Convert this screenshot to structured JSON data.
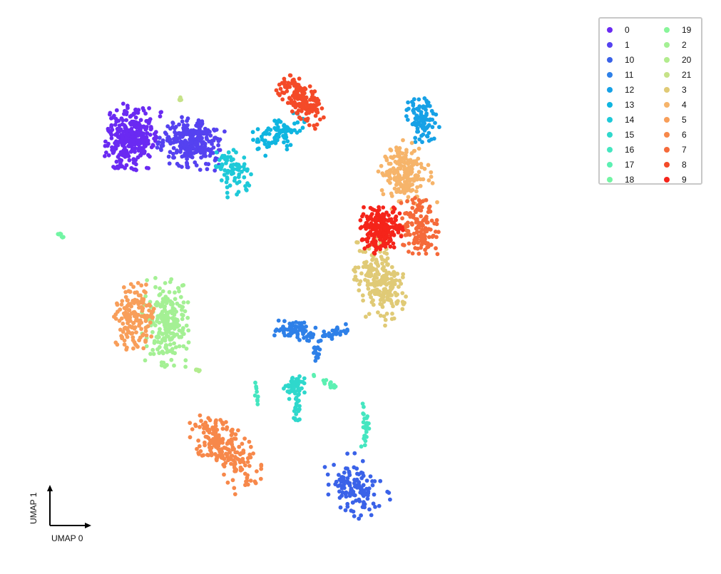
{
  "chart_data": {
    "type": "scatter",
    "title": "",
    "xlabel": "UMAP 0",
    "ylabel": "UMAP 1",
    "grid": false,
    "legend_position": "top-right",
    "xlim": [
      0,
      100
    ],
    "ylim": [
      0,
      100
    ],
    "series": [
      {
        "name": "0",
        "color": "#6a2af2",
        "clusters": [
          {
            "cx": 20.5,
            "cy": 78.5,
            "rx": 4.2,
            "ry": 5.5,
            "n": 320,
            "angle": -10
          }
        ]
      },
      {
        "name": "1",
        "color": "#5542f0",
        "clusters": [
          {
            "cx": 30.8,
            "cy": 77.5,
            "rx": 5.2,
            "ry": 4.2,
            "n": 280,
            "angle": -10
          }
        ]
      },
      {
        "name": "10",
        "color": "#3a62e8",
        "clusters": [
          {
            "cx": 59.5,
            "cy": 14.0,
            "rx": 4.2,
            "ry": 5.5,
            "n": 130,
            "angle": 35
          }
        ]
      },
      {
        "name": "11",
        "color": "#2e80e8",
        "clusters": [
          {
            "cx": 49.0,
            "cy": 43.0,
            "rx": 4.8,
            "ry": 1.6,
            "n": 70,
            "angle": -10
          },
          {
            "cx": 56.0,
            "cy": 42.5,
            "rx": 3.5,
            "ry": 1.0,
            "n": 35,
            "angle": 15
          },
          {
            "cx": 53.0,
            "cy": 38.8,
            "rx": 0.8,
            "ry": 2.0,
            "n": 15,
            "angle": 0
          }
        ]
      },
      {
        "name": "12",
        "color": "#16a1e6",
        "clusters": [
          {
            "cx": 71.5,
            "cy": 82.0,
            "rx": 2.5,
            "ry": 4.2,
            "n": 90,
            "angle": 10
          }
        ]
      },
      {
        "name": "13",
        "color": "#0fb5e0",
        "clusters": [
          {
            "cx": 46.5,
            "cy": 79.0,
            "rx": 4.5,
            "ry": 2.8,
            "n": 90,
            "angle": 20
          }
        ]
      },
      {
        "name": "14",
        "color": "#1ec9d8",
        "clusters": [
          {
            "cx": 38.5,
            "cy": 72.5,
            "rx": 2.5,
            "ry": 4.0,
            "n": 80,
            "angle": 20
          }
        ]
      },
      {
        "name": "15",
        "color": "#2fd8cc",
        "clusters": [
          {
            "cx": 49.2,
            "cy": 32.5,
            "rx": 1.8,
            "ry": 2.0,
            "n": 55,
            "angle": 0
          },
          {
            "cx": 49.5,
            "cy": 28.5,
            "rx": 0.5,
            "ry": 2.8,
            "n": 20,
            "angle": 0
          }
        ]
      },
      {
        "name": "16",
        "color": "#45e6c0",
        "clusters": [
          {
            "cx": 61.5,
            "cy": 25.5,
            "rx": 0.7,
            "ry": 3.8,
            "n": 25,
            "angle": 0
          },
          {
            "cx": 42.5,
            "cy": 31.0,
            "rx": 0.4,
            "ry": 2.8,
            "n": 10,
            "angle": 0
          }
        ]
      },
      {
        "name": "17",
        "color": "#5cf0b2",
        "clusters": [
          {
            "cx": 55.5,
            "cy": 33.0,
            "rx": 3.2,
            "ry": 0.5,
            "n": 16,
            "angle": -30
          }
        ]
      },
      {
        "name": "18",
        "color": "#72f5a4",
        "clusters": [
          {
            "cx": 8.0,
            "cy": 60.5,
            "rx": 0.9,
            "ry": 0.3,
            "n": 8,
            "angle": -40
          }
        ]
      },
      {
        "name": "19",
        "color": "#88f59a",
        "clusters": []
      },
      {
        "name": "2",
        "color": "#a4f094",
        "clusters": [
          {
            "cx": 26.5,
            "cy": 44.5,
            "rx": 3.8,
            "ry": 7.5,
            "n": 230,
            "angle": 0
          }
        ]
      },
      {
        "name": "20",
        "color": "#b2ec8e",
        "clusters": [
          {
            "cx": 32.0,
            "cy": 35.5,
            "rx": 0.6,
            "ry": 0.3,
            "n": 5,
            "angle": 0
          }
        ]
      },
      {
        "name": "21",
        "color": "#c6e288",
        "clusters": [
          {
            "cx": 29.0,
            "cy": 85.5,
            "rx": 0.35,
            "ry": 0.5,
            "n": 5,
            "angle": 0
          }
        ]
      },
      {
        "name": "3",
        "color": "#e0ca76",
        "clusters": [
          {
            "cx": 64.0,
            "cy": 52.0,
            "rx": 4.0,
            "ry": 7.5,
            "n": 230,
            "angle": 15
          }
        ]
      },
      {
        "name": "4",
        "color": "#f6b46a",
        "clusters": [
          {
            "cx": 68.5,
            "cy": 72.0,
            "rx": 4.2,
            "ry": 5.8,
            "n": 200,
            "angle": 10
          }
        ]
      },
      {
        "name": "5",
        "color": "#f89e5a",
        "clusters": [
          {
            "cx": 21.0,
            "cy": 45.5,
            "rx": 3.2,
            "ry": 5.8,
            "n": 160,
            "angle": 0
          }
        ]
      },
      {
        "name": "6",
        "color": "#f7884a",
        "clusters": [
          {
            "cx": 37.0,
            "cy": 21.0,
            "rx": 3.8,
            "ry": 7.5,
            "n": 200,
            "angle": 40
          }
        ]
      },
      {
        "name": "7",
        "color": "#f56a3a",
        "clusters": [
          {
            "cx": 71.0,
            "cy": 62.0,
            "rx": 3.0,
            "ry": 5.0,
            "n": 140,
            "angle": 5
          }
        ]
      },
      {
        "name": "8",
        "color": "#f44a28",
        "clusters": [
          {
            "cx": 50.5,
            "cy": 85.5,
            "rx": 2.5,
            "ry": 5.2,
            "n": 160,
            "angle": 40
          }
        ]
      },
      {
        "name": "9",
        "color": "#f5241a",
        "clusters": [
          {
            "cx": 64.5,
            "cy": 61.5,
            "rx": 3.5,
            "ry": 4.0,
            "n": 220,
            "angle": 0
          }
        ]
      }
    ]
  }
}
